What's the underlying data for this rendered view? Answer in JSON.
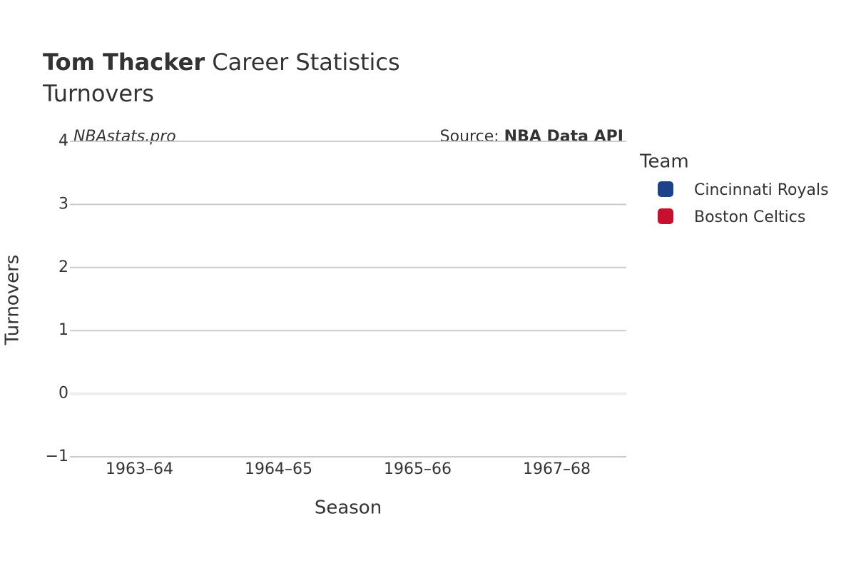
{
  "chart_data": {
    "type": "bar",
    "title_name": "Tom Thacker",
    "title": "Career Statistics",
    "subtitle": "Turnovers",
    "watermark": "NBAstats.pro",
    "source_label": "Source:",
    "source": "NBA Data API",
    "x_label": "Season",
    "y_label": "Turnovers",
    "legend_title": "Team",
    "categories": [
      "1963–64",
      "1964–65",
      "1965–66",
      "1967–68"
    ],
    "series": [
      {
        "name": "Cincinnati Royals",
        "color": "#1d428a",
        "values": [
          null,
          null,
          null,
          null
        ]
      },
      {
        "name": "Boston Celtics",
        "color": "#c8102e",
        "values": [
          null,
          null,
          null,
          null
        ]
      }
    ],
    "ylim": [
      -1,
      4
    ],
    "yticks": [
      {
        "value": -1,
        "label": "−1"
      },
      0,
      1,
      2,
      3,
      4
    ],
    "grid": true
  }
}
